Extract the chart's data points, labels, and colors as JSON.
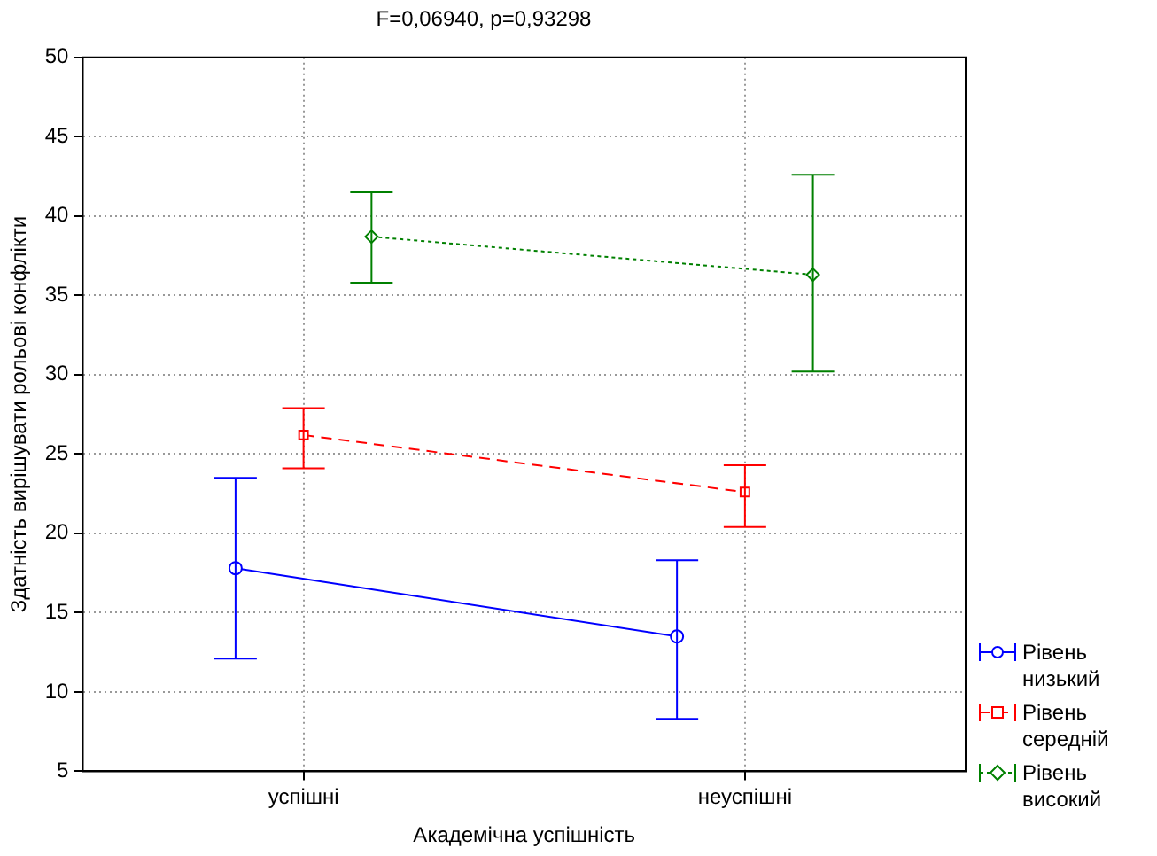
{
  "chart_data": {
    "type": "line",
    "title": "F=0,06940, p=0,93298",
    "xlabel": "Академічна успішність",
    "ylabel": "Здатність вирішувати рольові конфлікти",
    "categories": [
      "успішні",
      "неуспішні"
    ],
    "series": [
      {
        "name": "Рівень низький",
        "color": "#0000ff",
        "values": [
          17.8,
          13.5
        ],
        "errors": [
          [
            12.1,
            23.5
          ],
          [
            8.3,
            18.3
          ]
        ],
        "marker": "circle",
        "line_style": "solid"
      },
      {
        "name": "Рівень середній",
        "color": "#ff0000",
        "values": [
          26.2,
          22.6
        ],
        "errors": [
          [
            24.1,
            27.9
          ],
          [
            20.4,
            24.3
          ]
        ],
        "marker": "square",
        "line_style": "dashed"
      },
      {
        "name": "Рівень високий",
        "color": "#008000",
        "values": [
          38.7,
          36.3
        ],
        "errors": [
          [
            35.8,
            41.5
          ],
          [
            30.2,
            42.6
          ]
        ],
        "marker": "diamond",
        "line_style": "dotted"
      }
    ],
    "ylim": [
      5,
      50
    ],
    "yticks": [
      5,
      10,
      15,
      20,
      25,
      30,
      35,
      40,
      45,
      50
    ],
    "grid": true,
    "legend": "bottom right"
  }
}
